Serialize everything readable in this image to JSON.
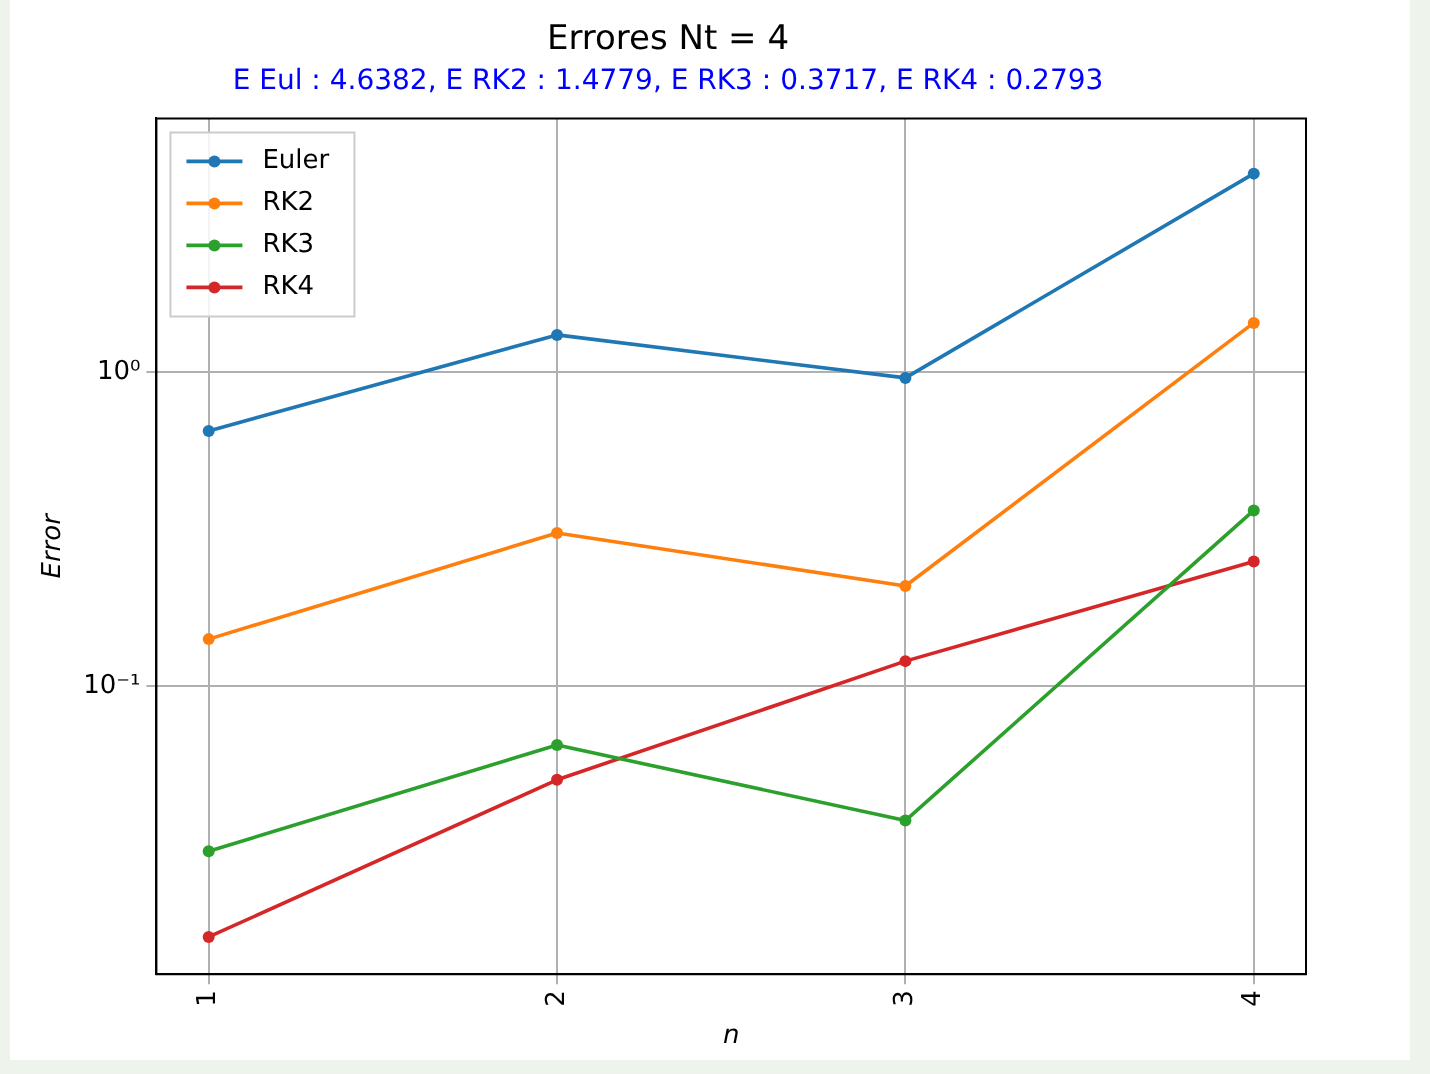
{
  "chart_data": {
    "type": "line",
    "title": "Errores Nt = 4",
    "subtitle": "E Eul : 4.6382, E RK2 : 1.4779, E RK3 : 0.3717, E RK4 : 0.2793",
    "xlabel": "n",
    "ylabel": "Error",
    "x": [
      1,
      2,
      3,
      4
    ],
    "series": [
      {
        "name": "Euler",
        "color": "#1f77b4",
        "values": [
          0.648,
          1.31,
          0.956,
          4.27
        ]
      },
      {
        "name": "RK2",
        "color": "#ff7f0e",
        "values": [
          0.141,
          0.307,
          0.208,
          1.43
        ]
      },
      {
        "name": "RK3",
        "color": "#2ca02c",
        "values": [
          0.0298,
          0.0649,
          0.0373,
          0.362
        ]
      },
      {
        "name": "RK4",
        "color": "#d62728",
        "values": [
          0.0159,
          0.0503,
          0.12,
          0.249
        ]
      }
    ],
    "xlim": [
      0.85,
      4.15
    ],
    "xticks": [
      1,
      2,
      3,
      4
    ],
    "ylim": [
      0.0121,
      6.4
    ],
    "yticks": [
      {
        "value": 0.1,
        "label": "10⁻¹"
      },
      {
        "value": 1,
        "label": "10⁰"
      }
    ],
    "log": "y",
    "grid": true,
    "legend": "top left",
    "marker": "circle",
    "line_style": "solid"
  }
}
